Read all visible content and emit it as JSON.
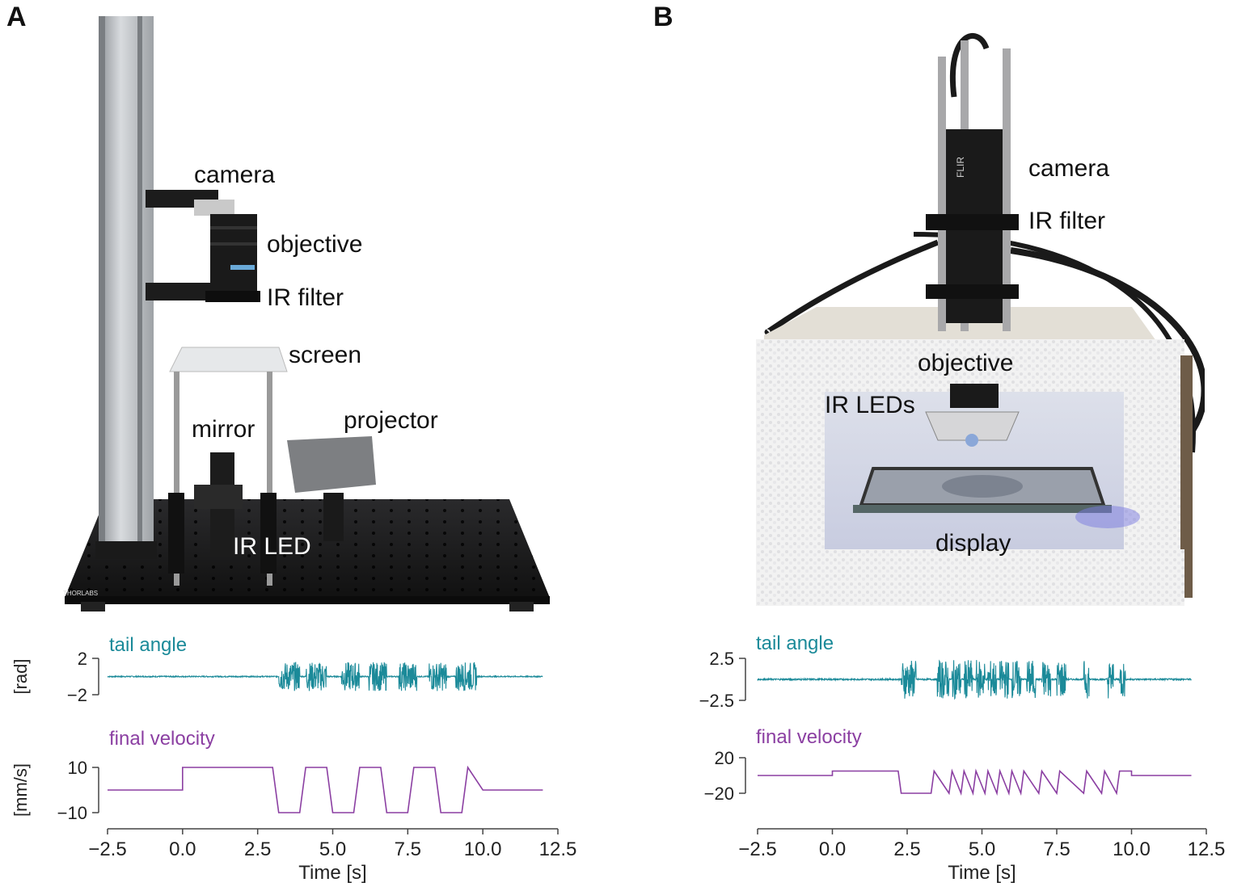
{
  "panels": {
    "a": {
      "letter": "A",
      "labels": {
        "camera": "camera",
        "objective": "objective",
        "ir_filter": "IR filter",
        "screen": "screen",
        "mirror": "mirror",
        "projector": "projector",
        "ir_led": "IR LED",
        "brand": "THORLABS"
      }
    },
    "b": {
      "letter": "B",
      "labels": {
        "camera": "camera",
        "ir_filter": "IR filter",
        "objective": "objective",
        "ir_leds": "IR LEDs",
        "display": "display",
        "brand": "FLIR"
      }
    }
  },
  "colors": {
    "teal": "#1b8a99",
    "purple": "#8b3fa2",
    "axis": "#444444"
  },
  "chart_data": [
    {
      "id": "a-tail",
      "type": "line",
      "title": "tail angle",
      "ylabel": "[rad]",
      "yticks": [
        "2",
        "−2"
      ],
      "ylim": [
        -2,
        2
      ],
      "xlim": [
        -2.5,
        12.5
      ],
      "color": "#1b8a99",
      "bursts": [
        [
          3.2,
          3.9
        ],
        [
          4.1,
          4.8
        ],
        [
          5.3,
          5.9
        ],
        [
          6.2,
          6.8
        ],
        [
          7.2,
          7.8
        ],
        [
          8.2,
          8.8
        ],
        [
          9.1,
          9.8
        ]
      ],
      "amplitude": 1.6
    },
    {
      "id": "a-vel",
      "type": "line",
      "title": "final velocity",
      "ylabel": "[mm/s]",
      "yticks": [
        "10",
        "−10"
      ],
      "ylim": [
        -10,
        10
      ],
      "xlim": [
        -2.5,
        12.5
      ],
      "color": "#8b3fa2",
      "x": [
        -2.5,
        0,
        0,
        3,
        3.2,
        3.9,
        4.1,
        4.8,
        5.0,
        5.7,
        5.9,
        6.6,
        6.8,
        7.5,
        7.7,
        8.4,
        8.6,
        9.3,
        9.5,
        10.0,
        12
      ],
      "y": [
        0,
        0,
        10,
        10,
        -10,
        -10,
        10,
        10,
        -10,
        -10,
        10,
        10,
        -10,
        -10,
        10,
        10,
        -10,
        -10,
        10,
        0,
        0
      ],
      "xticks": [
        "−2.5",
        "0.0",
        "2.5",
        "5.0",
        "7.5",
        "10.0",
        "12.5"
      ],
      "xlabel": "Time [s]"
    },
    {
      "id": "b-tail",
      "type": "line",
      "title": "tail angle",
      "ylabel": "",
      "yticks": [
        "2.5",
        "−2.5"
      ],
      "ylim": [
        -2.5,
        2.5
      ],
      "xlim": [
        -2.5,
        12.5
      ],
      "color": "#1b8a99",
      "bursts": [
        [
          2.3,
          2.8
        ],
        [
          3.5,
          3.9
        ],
        [
          4.0,
          4.3
        ],
        [
          4.4,
          4.7
        ],
        [
          4.8,
          5.1
        ],
        [
          5.2,
          5.5
        ],
        [
          5.6,
          5.9
        ],
        [
          6.0,
          6.3
        ],
        [
          6.5,
          6.8
        ],
        [
          7.0,
          7.3
        ],
        [
          7.5,
          7.8
        ],
        [
          8.4,
          8.6
        ],
        [
          9.2,
          9.4
        ],
        [
          9.6,
          9.8
        ]
      ],
      "amplitude": 2.3
    },
    {
      "id": "b-vel",
      "type": "line",
      "title": "final velocity",
      "ylabel": "",
      "yticks": [
        "20",
        "−20"
      ],
      "ylim": [
        -20,
        20
      ],
      "xlim": [
        -2.5,
        12.5
      ],
      "color": "#8b3fa2",
      "x": [
        -2.5,
        0,
        0,
        2.2,
        2.3,
        3.3,
        3.4,
        3.9,
        4.0,
        4.3,
        4.4,
        4.7,
        4.8,
        5.1,
        5.2,
        5.5,
        5.6,
        5.9,
        6.0,
        6.3,
        6.4,
        6.9,
        7.0,
        7.5,
        7.6,
        8.4,
        8.5,
        9.0,
        9.1,
        9.5,
        9.6,
        10.0,
        10.0,
        12
      ],
      "y": [
        0,
        0,
        5,
        5,
        -20,
        -20,
        5,
        -20,
        5,
        -20,
        5,
        -20,
        5,
        -20,
        5,
        -20,
        5,
        -20,
        5,
        -20,
        5,
        -20,
        5,
        -20,
        5,
        -20,
        5,
        -20,
        5,
        -20,
        5,
        5,
        0,
        0
      ],
      "xticks": [
        "−2.5",
        "0.0",
        "2.5",
        "5.0",
        "7.5",
        "10.0",
        "12.5"
      ],
      "xlabel": "Time [s]"
    }
  ]
}
